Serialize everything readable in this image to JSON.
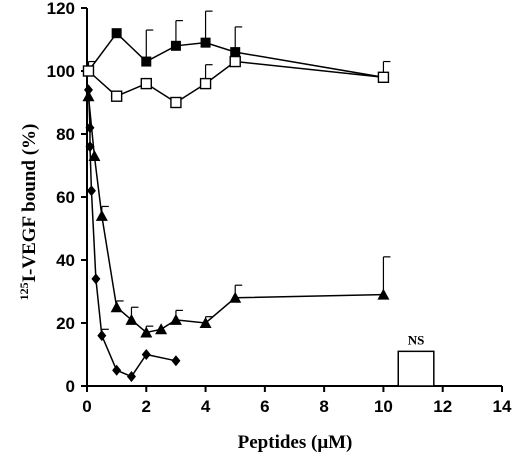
{
  "chart_data": {
    "type": "line",
    "xlabel": "Peptides (μM)",
    "ylabel_sup": "125",
    "ylabel_rest": "I-VEGF bound (%)",
    "xlim": [
      0,
      14
    ],
    "ylim": [
      0,
      120
    ],
    "x_ticks": [
      0,
      2,
      4,
      6,
      8,
      10,
      12,
      14
    ],
    "y_ticks": [
      0,
      20,
      40,
      60,
      80,
      100,
      120
    ],
    "grid": false,
    "legend": "none",
    "series": [
      {
        "marker": "filled-square",
        "points": [
          [
            0.05,
            100
          ],
          [
            1,
            112
          ],
          [
            2,
            103
          ],
          [
            3,
            108
          ],
          [
            4,
            109
          ],
          [
            5,
            106
          ],
          [
            10,
            98
          ]
        ],
        "error_up": [
          3,
          0,
          10,
          8,
          10,
          8,
          5
        ]
      },
      {
        "marker": "open-square",
        "points": [
          [
            0.05,
            100
          ],
          [
            1,
            92
          ],
          [
            2,
            96
          ],
          [
            3,
            90
          ],
          [
            4,
            96
          ],
          [
            5,
            103
          ],
          [
            10,
            98
          ]
        ],
        "error_up": [
          0,
          0,
          0,
          0,
          6,
          0,
          0
        ]
      },
      {
        "marker": "filled-triangle",
        "points": [
          [
            0.05,
            92
          ],
          [
            0.25,
            73
          ],
          [
            0.5,
            54
          ],
          [
            1,
            25
          ],
          [
            1.5,
            21
          ],
          [
            2,
            17
          ],
          [
            2.5,
            18
          ],
          [
            3,
            21
          ],
          [
            4,
            20
          ],
          [
            5,
            28
          ],
          [
            10,
            29
          ]
        ],
        "error_up": [
          0,
          0,
          3,
          2,
          4,
          2,
          0,
          3,
          2,
          4,
          12
        ]
      },
      {
        "marker": "filled-diamond",
        "points": [
          [
            0.05,
            94
          ],
          [
            0.1,
            82
          ],
          [
            0.1,
            76
          ],
          [
            0.15,
            62
          ],
          [
            0.3,
            34
          ],
          [
            0.5,
            16
          ],
          [
            1,
            5
          ],
          [
            1.5,
            3
          ],
          [
            2,
            10
          ],
          [
            3,
            8
          ]
        ],
        "error_up": [
          0,
          0,
          0,
          0,
          0,
          2,
          0,
          0,
          0,
          0
        ]
      }
    ],
    "annotation_bar": {
      "x_start": 10.5,
      "x_end": 11.7,
      "value": 11,
      "label": "NS"
    }
  }
}
